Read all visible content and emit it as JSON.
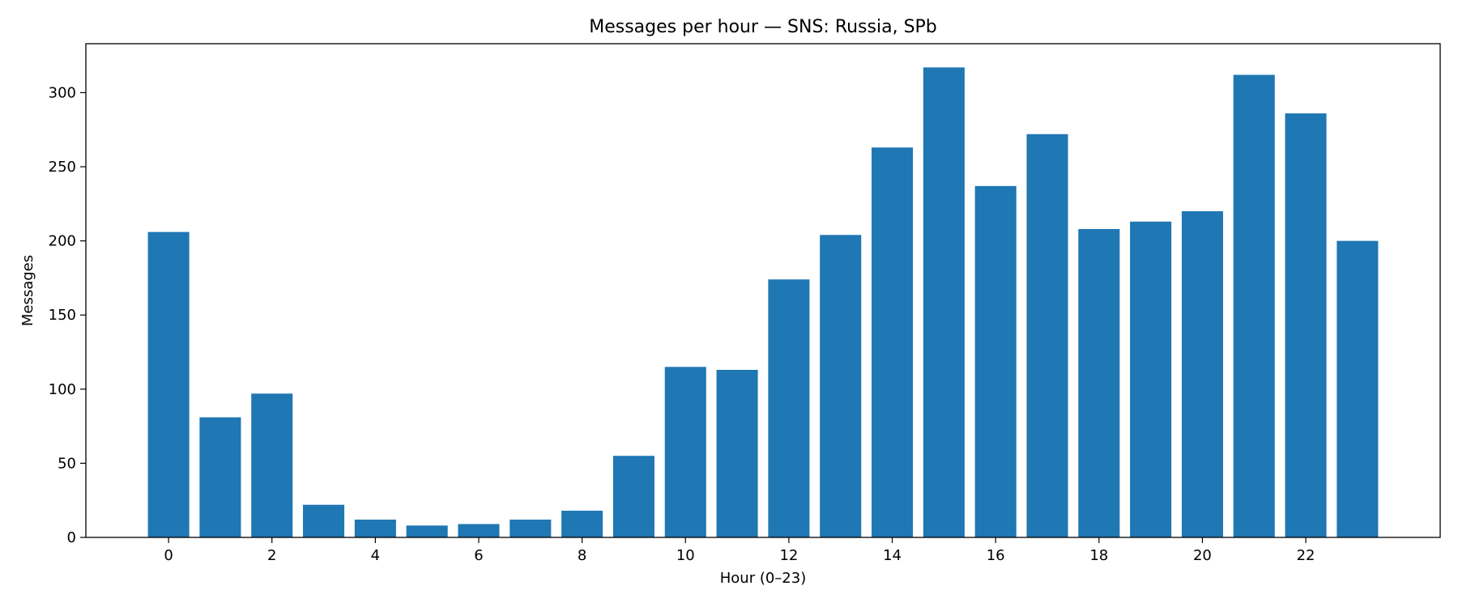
{
  "chart_data": {
    "type": "bar",
    "title": "Messages per hour — SNS: Russia, SPb",
    "xlabel": "Hour (0–23)",
    "ylabel": "Messages",
    "categories": [
      0,
      1,
      2,
      3,
      4,
      5,
      6,
      7,
      8,
      9,
      10,
      11,
      12,
      13,
      14,
      15,
      16,
      17,
      18,
      19,
      20,
      21,
      22,
      23
    ],
    "values": [
      206,
      81,
      97,
      22,
      12,
      8,
      9,
      12,
      18,
      55,
      115,
      113,
      174,
      204,
      263,
      317,
      237,
      272,
      208,
      213,
      220,
      312,
      286,
      200
    ],
    "xticks": [
      0,
      2,
      4,
      6,
      8,
      10,
      12,
      14,
      16,
      18,
      20,
      22
    ],
    "yticks": [
      0,
      50,
      100,
      150,
      200,
      250,
      300
    ],
    "xlim": [
      -1.6,
      24.6
    ],
    "ylim": [
      0,
      333
    ],
    "bar_color": "#1f77b4",
    "grid": false,
    "legend": "none"
  }
}
